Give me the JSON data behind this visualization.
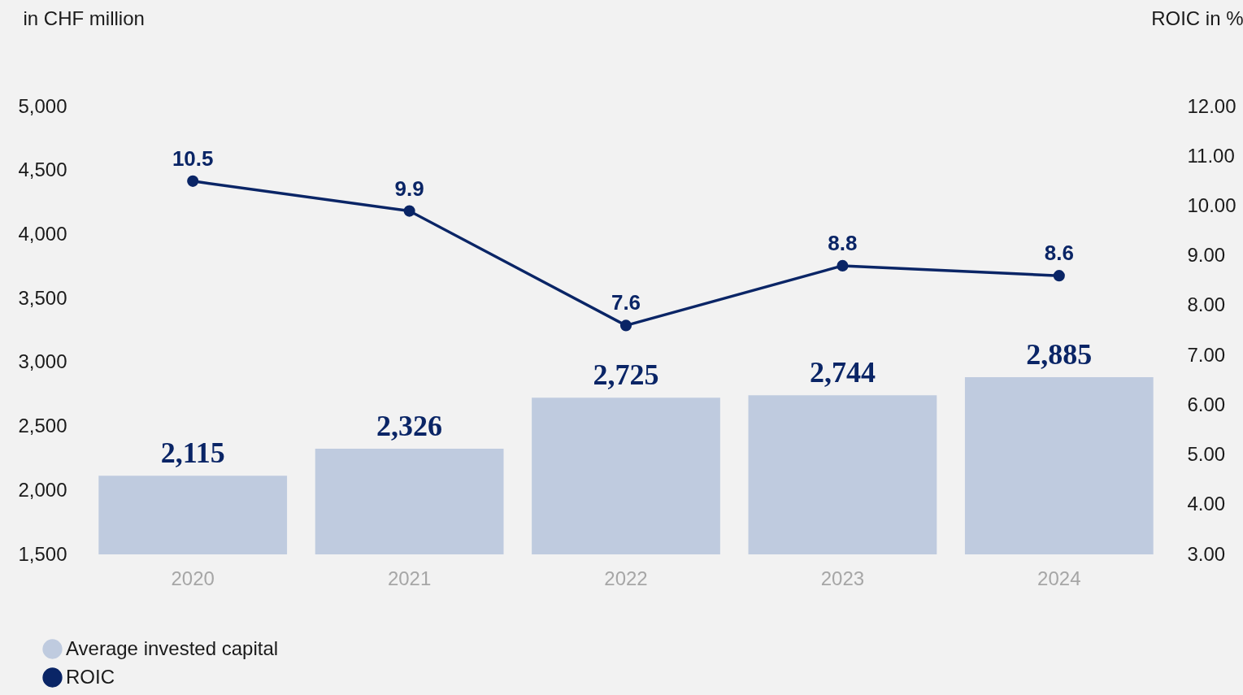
{
  "chart_data": {
    "type": "bar",
    "categories": [
      "2020",
      "2021",
      "2022",
      "2023",
      "2024"
    ],
    "ylabel": "in CHF million",
    "y2label": "ROIC in %",
    "series": [
      {
        "name": "Average invested capital",
        "color": "#bfcbdf",
        "values": [
          2115,
          2326,
          2725,
          2744,
          2885
        ],
        "value_labels": [
          "2,115",
          "2,326",
          "2,725",
          "2,744",
          "2,885"
        ]
      },
      {
        "name": "ROIC",
        "type": "line",
        "axis": "y2",
        "color": "#0a2566",
        "values": [
          10.5,
          9.9,
          7.6,
          8.8,
          8.6
        ],
        "value_labels": [
          "10.5",
          "9.9",
          "7.6",
          "8.8",
          "8.6"
        ]
      }
    ],
    "ylim": [
      1500,
      5000
    ],
    "yticks": [
      {
        "value": 1500,
        "label": "1,500"
      },
      {
        "value": 2000,
        "label": "2,000"
      },
      {
        "value": 2500,
        "label": "2,500"
      },
      {
        "value": 3000,
        "label": "3,000"
      },
      {
        "value": 3500,
        "label": "3,500"
      },
      {
        "value": 4000,
        "label": "4,000"
      },
      {
        "value": 4500,
        "label": "4,500"
      },
      {
        "value": 5000,
        "label": "5,000"
      }
    ],
    "y2lim": [
      3,
      12
    ],
    "y2ticks": [
      {
        "value": 3,
        "label": "3.00"
      },
      {
        "value": 4,
        "label": "4.00"
      },
      {
        "value": 5,
        "label": "5.00"
      },
      {
        "value": 6,
        "label": "6.00"
      },
      {
        "value": 7,
        "label": "7.00"
      },
      {
        "value": 8,
        "label": "8.00"
      },
      {
        "value": 9,
        "label": "9.00"
      },
      {
        "value": 10,
        "label": "10.00"
      },
      {
        "value": 11,
        "label": "11.00"
      },
      {
        "value": 12,
        "label": "12.00"
      }
    ],
    "legend": "bottom left",
    "grid": false,
    "marker": "circle"
  }
}
